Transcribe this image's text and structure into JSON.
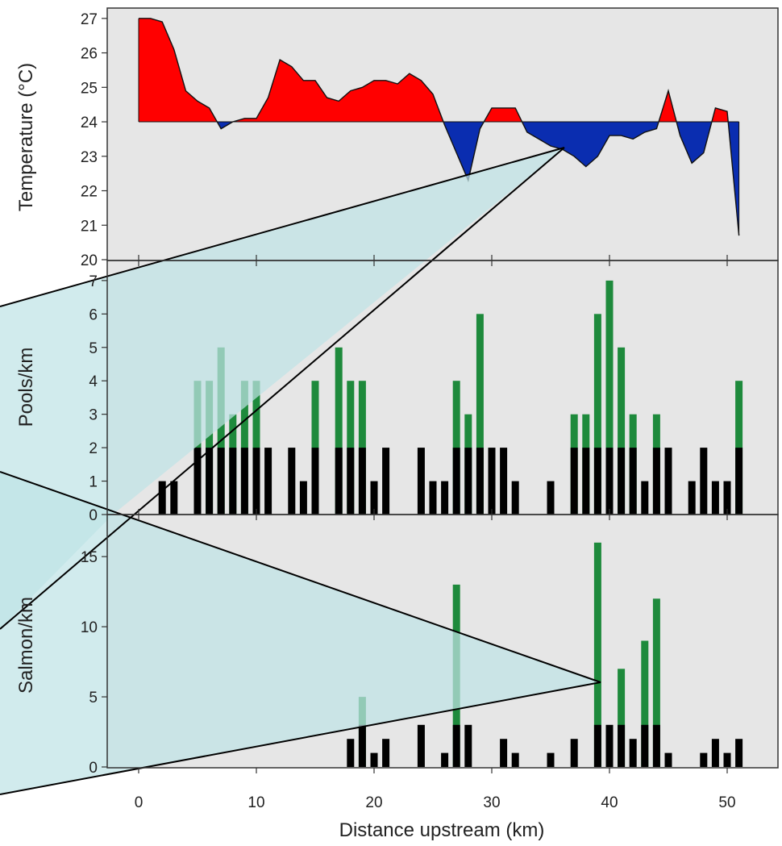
{
  "colors": {
    "panel_bg": "#e6e6e6",
    "above_fill": "#ff0000",
    "below_fill": "#0a2db0",
    "pool_bar": "#1e8a3c",
    "salmon_bar": "#1e8a3c",
    "base_bar": "#000000",
    "overlay_fill": "#bfe3e6"
  },
  "chart_data": [
    {
      "type": "area",
      "ylabel": "Temperature (°C)",
      "baseline": 24,
      "ylim": [
        20,
        27.3
      ],
      "xlim": [
        0,
        52
      ],
      "yticks": [
        20,
        21,
        22,
        23,
        24,
        25,
        26,
        27
      ],
      "x": [
        0,
        1,
        2,
        3,
        4,
        5,
        6,
        7,
        8,
        9,
        10,
        11,
        12,
        13,
        14,
        15,
        16,
        17,
        18,
        19,
        20,
        21,
        22,
        23,
        24,
        25,
        26,
        27,
        28,
        29,
        30,
        31,
        32,
        33,
        34,
        35,
        36,
        37,
        38,
        39,
        40,
        41,
        42,
        43,
        44,
        45,
        46,
        47,
        48,
        49,
        50,
        51
      ],
      "y": [
        27.0,
        27.0,
        26.9,
        26.1,
        24.9,
        24.6,
        24.4,
        23.8,
        24.0,
        24.1,
        24.1,
        24.7,
        25.8,
        25.6,
        25.2,
        25.2,
        24.7,
        24.6,
        24.9,
        25.0,
        25.2,
        25.2,
        25.1,
        25.4,
        25.2,
        24.8,
        23.9,
        23.1,
        22.3,
        23.8,
        24.4,
        24.4,
        24.4,
        23.7,
        23.5,
        23.3,
        23.2,
        23.0,
        22.7,
        23.0,
        23.6,
        23.6,
        23.5,
        23.7,
        23.8,
        24.9,
        23.6,
        22.8,
        23.1,
        24.4,
        24.3,
        20.7
      ]
    },
    {
      "type": "bar",
      "ylabel": "Pools/km",
      "ylim": [
        0,
        7.6
      ],
      "yticks": [
        0,
        1,
        2,
        3,
        4,
        5,
        6,
        7
      ],
      "series": [
        {
          "x": [
            2,
            3,
            5,
            6,
            7,
            8,
            9,
            10,
            11,
            13,
            14,
            15,
            17,
            18,
            19,
            20,
            21,
            24,
            25,
            26,
            27,
            28,
            29,
            30,
            31,
            32,
            35,
            37,
            38,
            39,
            40,
            41,
            42,
            43,
            44,
            45,
            47,
            48,
            49,
            50,
            51
          ],
          "values": [
            1,
            1,
            2,
            2,
            2,
            2,
            2,
            2,
            2,
            2,
            1,
            2,
            2,
            2,
            2,
            1,
            2,
            2,
            1,
            1,
            2,
            2,
            2,
            2,
            2,
            1,
            1,
            2,
            2,
            2,
            2,
            2,
            2,
            1,
            2,
            2,
            1,
            2,
            1,
            1,
            2
          ]
        },
        {
          "x": [
            5,
            6,
            7,
            8,
            9,
            10,
            15,
            17,
            18,
            19,
            27,
            28,
            29,
            37,
            38,
            39,
            40,
            41,
            42,
            44,
            51
          ],
          "values": [
            4,
            4,
            5,
            3,
            4,
            4,
            4,
            5,
            4,
            4,
            4,
            3,
            6,
            3,
            3,
            6,
            7,
            5,
            3,
            3,
            4
          ]
        }
      ]
    },
    {
      "type": "bar",
      "ylabel": "Salmon/km",
      "xlabel": "Distance upstream (km)",
      "ylim": [
        0,
        18
      ],
      "xlim": [
        0,
        52
      ],
      "yticks": [
        0,
        5,
        10,
        15
      ],
      "xticks": [
        0,
        10,
        20,
        30,
        40,
        50
      ],
      "series": [
        {
          "x": [
            18,
            19,
            20,
            21,
            24,
            26,
            27,
            28,
            31,
            32,
            35,
            37,
            39,
            40,
            41,
            42,
            43,
            44,
            45,
            48,
            49,
            50,
            51
          ],
          "values": [
            2,
            3,
            1,
            2,
            3,
            1,
            3,
            3,
            2,
            1,
            1,
            2,
            3,
            3,
            3,
            2,
            3,
            3,
            1,
            1,
            2,
            1,
            2
          ]
        },
        {
          "x": [
            19,
            27,
            39,
            41,
            43,
            44
          ],
          "values": [
            5,
            13,
            16,
            7,
            9,
            12
          ]
        }
      ]
    }
  ]
}
